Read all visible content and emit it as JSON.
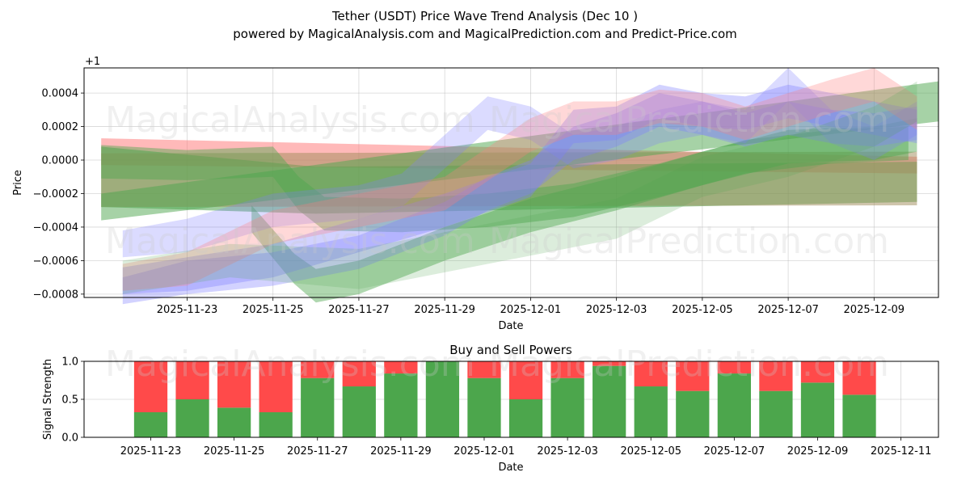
{
  "title_line1": "Tether (USDT) Price Wave Trend Analysis (Dec 10 )",
  "title_line2": "powered by MagicalAnalysis.com and MagicalPrediction.com and Predict-Price.com",
  "watermarks": [
    "MagicalAnalysis.com",
    "MagicalPrediction.com",
    "MagicalAnalysis.com",
    "MagicalPrediction.com",
    "MagicalAnalysis.com",
    "MagicalPrediction.com"
  ],
  "chart_data": [
    {
      "type": "area",
      "title": "",
      "xlabel": "Date",
      "ylabel": "Price",
      "offset_label": "+1",
      "x_start": "2025-11-21",
      "x_end": "2025-12-10",
      "xlim_days": [
        -0.4,
        19.5
      ],
      "ylim": [
        -0.00082,
        0.00055
      ],
      "x_tick_labels": [
        "2025-11-23",
        "2025-11-25",
        "2025-11-27",
        "2025-11-29",
        "2025-12-01",
        "2025-12-03",
        "2025-12-05",
        "2025-12-07",
        "2025-12-09"
      ],
      "x_tick_days": [
        2,
        4,
        6,
        8,
        10,
        12,
        14,
        16,
        18
      ],
      "y_ticks": [
        -0.0008,
        -0.0006,
        -0.0004,
        -0.0002,
        0.0,
        0.0002,
        0.0004
      ],
      "y_tick_labels": [
        "−0.0008",
        "−0.0006",
        "−0.0004",
        "−0.0002",
        "0.0000",
        "0.0002",
        "0.0004"
      ],
      "colors": {
        "red": "#ff7f7f",
        "green": "#4ea64e",
        "blue": "#7f7fff",
        "brown": "#a08c5a"
      },
      "bands": [
        {
          "name": "red-flat-band",
          "color": "red",
          "x": [
            0,
            19
          ],
          "center": [
            5e-05,
            -3e-05
          ],
          "width": [
            8e-05,
            5e-05
          ],
          "alpha": 0.55
        },
        {
          "name": "green-flat-band",
          "color": "green",
          "x": [
            0,
            5,
            19
          ],
          "center": [
            -0.0001,
            -0.00018,
            -0.00013
          ],
          "width": [
            0.00018,
            0.00014,
            0.00012
          ],
          "alpha": 0.55
        },
        {
          "name": "brown-flat-band",
          "color": "brown",
          "x": [
            0,
            19
          ],
          "center": [
            -0.00012,
            -0.00011
          ],
          "width": [
            0.00016,
            0.00016
          ],
          "alpha": 0.5
        },
        {
          "name": "green-trend-band",
          "color": "green",
          "x": [
            0,
            19.5
          ],
          "center": [
            -0.00028,
            0.00035
          ],
          "width": [
            8e-05,
            0.00012
          ],
          "alpha": 0.5
        },
        {
          "name": "green-wave-band",
          "color": "green",
          "x": [
            3.5,
            4.5,
            5,
            6,
            8,
            10,
            12,
            14,
            16,
            18,
            19
          ],
          "center": [
            -0.00035,
            -0.00065,
            -0.00075,
            -0.0007,
            -0.0005,
            -0.00033,
            -0.0002,
            -5e-05,
            8e-05,
            0.0001,
            0.00015
          ],
          "width": [
            8e-05,
            9e-05,
            0.0001,
            0.0001,
            0.0001,
            0.0001,
            0.0001,
            0.0001,
            0.0001,
            0.0001,
            0.0001
          ],
          "alpha": 0.45
        },
        {
          "name": "green-dip-band",
          "color": "green",
          "x": [
            0,
            2,
            4,
            4.6,
            5.2,
            7,
            9,
            11,
            13,
            15,
            17,
            18.8
          ],
          "center": [
            -1e-05,
            -3e-05,
            -1e-05,
            -0.0002,
            -0.00032,
            -0.00033,
            -0.0003,
            -0.00024,
            -0.00012,
            2e-05,
            8e-05,
            0.0001
          ],
          "width": [
            0.0001,
            9e-05,
            9e-05,
            0.0001,
            0.0001,
            0.0001,
            0.0001,
            0.0001,
            0.0001,
            0.0001,
            0.0001,
            0.0001
          ],
          "alpha": 0.45
        },
        {
          "name": "blue-wave-band-1",
          "color": "blue",
          "x": [
            0.5,
            2,
            4,
            6,
            8,
            9,
            10,
            11,
            12,
            13,
            14,
            15,
            16,
            17,
            18,
            19
          ],
          "center": [
            -0.00078,
            -0.0007,
            -0.00065,
            -0.00055,
            -0.00035,
            -0.0002,
            -0.0001,
            0.0001,
            0.00018,
            0.0003,
            0.00025,
            0.00018,
            0.00025,
            0.0002,
            0.00018,
            0.00022
          ],
          "width": [
            8e-05,
            0.0001,
            0.0001,
            0.0001,
            0.0001,
            0.0001,
            0.0001,
            0.0001,
            0.0001,
            0.0001,
            0.0001,
            0.0001,
            0.0001,
            0.0001,
            0.0001,
            0.0001
          ],
          "alpha": 0.35
        },
        {
          "name": "blue-wave-band-2",
          "color": "blue",
          "x": [
            0.5,
            2,
            4,
            6,
            7,
            8,
            9,
            10,
            11,
            12,
            13,
            14,
            15,
            16,
            17,
            18,
            19
          ],
          "center": [
            -0.0005,
            -0.00045,
            -0.0003,
            -0.00025,
            -0.00018,
            5e-05,
            0.00028,
            0.00022,
            5e-05,
            0.0001,
            0.0002,
            0.00025,
            0.0002,
            0.00045,
            0.0002,
            0.0001,
            0.00025
          ],
          "width": [
            8e-05,
            0.0001,
            0.0001,
            0.0001,
            0.0001,
            0.0001,
            0.0001,
            0.0001,
            0.0001,
            0.0001,
            0.0001,
            0.0001,
            0.0001,
            0.0001,
            0.0001,
            0.0001,
            0.0001
          ],
          "alpha": 0.28
        },
        {
          "name": "purple-wave-band",
          "color": "blue",
          "x": [
            0.5,
            2,
            4,
            6,
            8,
            10,
            11,
            12,
            13,
            14,
            15,
            16,
            17,
            18,
            19
          ],
          "center": [
            -0.00072,
            -0.00068,
            -0.0006,
            -0.00045,
            -0.0003,
            -0.00012,
            0.0002,
            0.00022,
            0.00035,
            0.0003,
            0.00028,
            0.00035,
            0.0003,
            0.00025,
            0.0002
          ],
          "width": [
            8e-05,
            0.0001,
            0.0001,
            0.0001,
            0.0001,
            0.0001,
            0.0001,
            0.0001,
            0.0001,
            0.0001,
            0.0001,
            0.0001,
            0.0001,
            0.0001,
            0.0001
          ],
          "alpha": 0.35
        },
        {
          "name": "red-wave-band",
          "color": "red",
          "x": [
            0.5,
            2,
            4,
            6,
            8,
            10,
            11,
            12,
            13,
            14,
            15,
            16,
            17,
            18,
            19
          ],
          "center": [
            -0.0007,
            -0.00065,
            -0.0004,
            -0.0003,
            -0.0002,
            0.00015,
            0.00025,
            0.00025,
            0.00032,
            0.0003,
            0.00022,
            0.0003,
            0.00038,
            0.00045,
            0.00028
          ],
          "width": [
            8e-05,
            0.0001,
            0.0001,
            0.0001,
            0.0001,
            0.0001,
            0.0001,
            0.0001,
            0.0001,
            0.0001,
            0.0001,
            0.0001,
            0.0001,
            0.0001,
            0.0001
          ],
          "alpha": 0.3
        },
        {
          "name": "green-light-band",
          "color": "green",
          "x": [
            0.5,
            3,
            6,
            8,
            10,
            12,
            14,
            16,
            18,
            19
          ],
          "center": [
            -0.0007,
            -0.0006,
            -0.00065,
            -0.00055,
            -0.00045,
            -0.00035,
            -0.0001,
            2e-05,
            0.0002,
            0.00035
          ],
          "width": [
            0.0001,
            0.0001,
            0.00012,
            0.00012,
            0.00012,
            0.00012,
            0.00012,
            0.00012,
            0.00012,
            0.00012
          ],
          "alpha": 0.2
        }
      ]
    },
    {
      "type": "bar",
      "title": "Buy and Sell Powers",
      "xlabel": "Date",
      "ylabel": "Signal Strength",
      "xlim_days": [
        -0.6,
        19.9
      ],
      "ylim": [
        0,
        1.0
      ],
      "y_ticks": [
        0.0,
        0.5,
        1.0
      ],
      "y_tick_labels": [
        "0.0",
        "0.5",
        "1.0"
      ],
      "x_tick_labels": [
        "2025-11-23",
        "2025-11-25",
        "2025-11-27",
        "2025-11-29",
        "2025-12-01",
        "2025-12-03",
        "2025-12-05",
        "2025-12-07",
        "2025-12-09",
        "2025-12-11"
      ],
      "x_tick_days": [
        1,
        3,
        5,
        7,
        9,
        11,
        13,
        15,
        17,
        19
      ],
      "bar_days": [
        1,
        2,
        3,
        4,
        5,
        6,
        7,
        8,
        9,
        10,
        11,
        12,
        13,
        14,
        15,
        16,
        17,
        18
      ],
      "series": [
        {
          "name": "Buy",
          "color": "#4ca64c",
          "values": [
            0.33,
            0.5,
            0.39,
            0.33,
            0.78,
            0.67,
            0.84,
            1.0,
            0.78,
            0.5,
            0.78,
            0.94,
            0.67,
            0.61,
            0.84,
            0.61,
            0.72,
            0.56
          ]
        },
        {
          "name": "Sell",
          "color": "#ff4a4a",
          "values": [
            0.67,
            0.5,
            0.61,
            0.67,
            0.22,
            0.33,
            0.16,
            0.0,
            0.22,
            0.5,
            0.22,
            0.06,
            0.33,
            0.39,
            0.16,
            0.39,
            0.28,
            0.44
          ]
        }
      ]
    }
  ]
}
